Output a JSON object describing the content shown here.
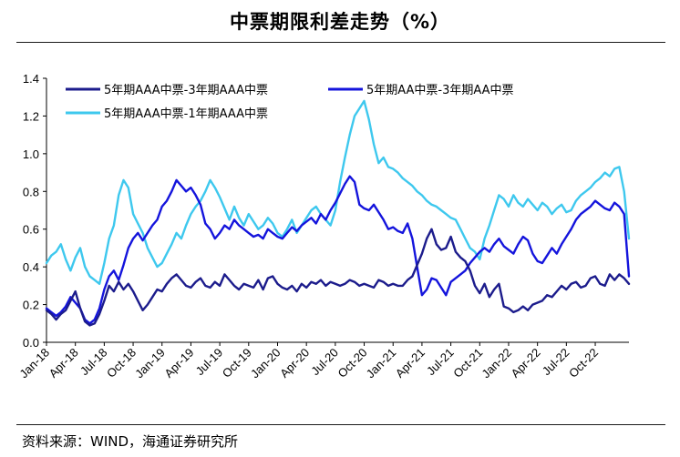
{
  "title": "中票期限利差走势（%）",
  "source": "资料来源：WIND，海通证券研究所",
  "chart_data": {
    "type": "line",
    "title": "中票期限利差走势（%）",
    "xlabel": "",
    "ylabel": "",
    "ylim": [
      0,
      1.4
    ],
    "yticks": [
      "0.0",
      "0.2",
      "0.4",
      "0.6",
      "0.8",
      "1.0",
      "1.2",
      "1.4"
    ],
    "xticks": [
      "Jan-18",
      "Apr-18",
      "Jul-18",
      "Oct-18",
      "Jan-19",
      "Apr-19",
      "Jul-19",
      "Oct-19",
      "Jan-20",
      "Apr-20",
      "Jul-20",
      "Oct-20",
      "Jan-21",
      "Apr-21",
      "Jul-21",
      "Oct-21",
      "Jan-22",
      "Apr-22",
      "Jul-22",
      "Oct-22"
    ],
    "x": [
      0,
      0.5,
      1,
      1.5,
      2,
      2.5,
      3,
      3.5,
      4,
      4.5,
      5,
      5.5,
      6,
      6.5,
      7,
      7.5,
      8,
      8.5,
      9,
      9.5,
      10,
      10.5,
      11,
      11.5,
      12,
      12.5,
      13,
      13.5,
      14,
      14.5,
      15,
      15.5,
      16,
      16.5,
      17,
      17.5,
      18,
      18.5,
      19,
      19.5,
      20,
      20.5,
      21,
      21.5,
      22,
      22.5,
      23,
      23.5,
      24,
      24.5,
      25,
      25.5,
      26,
      26.5,
      27,
      27.5,
      28,
      28.5,
      29,
      29.5,
      30,
      30.5,
      31,
      31.5,
      32,
      32.5,
      33,
      33.5,
      34,
      34.5,
      35,
      35.5,
      36,
      36.5,
      37,
      37.5,
      38,
      38.5,
      39,
      39.5,
      40,
      40.5,
      41,
      41.5,
      42,
      42.5,
      43,
      43.5,
      44,
      44.5,
      45,
      45.5,
      46,
      46.5,
      47,
      47.5,
      48,
      48.5,
      49,
      49.5,
      50,
      50.5,
      51,
      51.5,
      52,
      52.5,
      53,
      53.5,
      54,
      54.5,
      55,
      55.5,
      56,
      56.5,
      57,
      57.5,
      58,
      58.5,
      59,
      59.5,
      60,
      60.5
    ],
    "series": [
      {
        "name": "5年期AAA中票-3年期AAA中票",
        "color": "#1c1c8c",
        "values": [
          0.17,
          0.15,
          0.12,
          0.15,
          0.17,
          0.22,
          0.27,
          0.18,
          0.11,
          0.09,
          0.1,
          0.15,
          0.22,
          0.3,
          0.27,
          0.32,
          0.28,
          0.31,
          0.27,
          0.22,
          0.17,
          0.2,
          0.24,
          0.28,
          0.27,
          0.31,
          0.34,
          0.36,
          0.33,
          0.3,
          0.29,
          0.32,
          0.34,
          0.3,
          0.29,
          0.32,
          0.3,
          0.36,
          0.33,
          0.3,
          0.28,
          0.31,
          0.3,
          0.29,
          0.33,
          0.28,
          0.34,
          0.35,
          0.31,
          0.29,
          0.28,
          0.3,
          0.27,
          0.31,
          0.29,
          0.32,
          0.31,
          0.33,
          0.3,
          0.32,
          0.31,
          0.3,
          0.31,
          0.33,
          0.32,
          0.3,
          0.31,
          0.3,
          0.29,
          0.33,
          0.32,
          0.3,
          0.31,
          0.3,
          0.3,
          0.33,
          0.35,
          0.41,
          0.47,
          0.55,
          0.6,
          0.52,
          0.49,
          0.5,
          0.56,
          0.48,
          0.45,
          0.43,
          0.38,
          0.3,
          0.26,
          0.31,
          0.24,
          0.28,
          0.31,
          0.19,
          0.18,
          0.16,
          0.17,
          0.19,
          0.17,
          0.2,
          0.21,
          0.22,
          0.25,
          0.24,
          0.27,
          0.3,
          0.28,
          0.31,
          0.32,
          0.29,
          0.3,
          0.34,
          0.35,
          0.31,
          0.3,
          0.36,
          0.33,
          0.36,
          0.34,
          0.31
        ]
      },
      {
        "name": "5年期AA中票-3年期AA中票",
        "color": "#1414dc",
        "values": [
          0.18,
          0.16,
          0.14,
          0.16,
          0.19,
          0.24,
          0.21,
          0.18,
          0.12,
          0.1,
          0.12,
          0.18,
          0.28,
          0.35,
          0.38,
          0.33,
          0.41,
          0.5,
          0.55,
          0.58,
          0.54,
          0.58,
          0.62,
          0.65,
          0.72,
          0.75,
          0.8,
          0.86,
          0.83,
          0.8,
          0.82,
          0.78,
          0.73,
          0.63,
          0.6,
          0.55,
          0.58,
          0.62,
          0.6,
          0.65,
          0.62,
          0.6,
          0.58,
          0.56,
          0.57,
          0.55,
          0.6,
          0.58,
          0.56,
          0.55,
          0.58,
          0.61,
          0.59,
          0.62,
          0.64,
          0.66,
          0.63,
          0.68,
          0.65,
          0.7,
          0.74,
          0.79,
          0.84,
          0.88,
          0.85,
          0.73,
          0.71,
          0.7,
          0.73,
          0.69,
          0.65,
          0.6,
          0.61,
          0.59,
          0.58,
          0.63,
          0.55,
          0.4,
          0.25,
          0.28,
          0.34,
          0.33,
          0.29,
          0.25,
          0.32,
          0.34,
          0.36,
          0.38,
          0.42,
          0.45,
          0.48,
          0.5,
          0.48,
          0.52,
          0.55,
          0.51,
          0.49,
          0.47,
          0.52,
          0.56,
          0.54,
          0.47,
          0.43,
          0.42,
          0.46,
          0.5,
          0.47,
          0.52,
          0.56,
          0.6,
          0.65,
          0.68,
          0.7,
          0.72,
          0.75,
          0.73,
          0.71,
          0.7,
          0.74,
          0.72,
          0.68,
          0.35
        ]
      },
      {
        "name": "5年期AAA中票-1年期AAA中票",
        "color": "#3ec8ee",
        "values": [
          0.42,
          0.46,
          0.48,
          0.52,
          0.44,
          0.38,
          0.45,
          0.5,
          0.4,
          0.35,
          0.33,
          0.31,
          0.42,
          0.55,
          0.62,
          0.78,
          0.86,
          0.82,
          0.68,
          0.63,
          0.58,
          0.5,
          0.45,
          0.4,
          0.42,
          0.47,
          0.52,
          0.58,
          0.55,
          0.62,
          0.68,
          0.72,
          0.75,
          0.8,
          0.86,
          0.82,
          0.77,
          0.71,
          0.65,
          0.72,
          0.66,
          0.62,
          0.68,
          0.64,
          0.6,
          0.62,
          0.66,
          0.63,
          0.58,
          0.56,
          0.6,
          0.65,
          0.58,
          0.62,
          0.66,
          0.7,
          0.72,
          0.68,
          0.65,
          0.62,
          0.7,
          0.85,
          0.98,
          1.1,
          1.2,
          1.24,
          1.28,
          1.18,
          1.05,
          0.95,
          0.98,
          0.93,
          0.92,
          0.9,
          0.87,
          0.85,
          0.83,
          0.8,
          0.78,
          0.75,
          0.73,
          0.72,
          0.7,
          0.68,
          0.66,
          0.65,
          0.6,
          0.55,
          0.5,
          0.48,
          0.44,
          0.55,
          0.62,
          0.7,
          0.78,
          0.76,
          0.72,
          0.78,
          0.74,
          0.72,
          0.76,
          0.73,
          0.7,
          0.74,
          0.72,
          0.68,
          0.71,
          0.73,
          0.69,
          0.7,
          0.75,
          0.78,
          0.8,
          0.82,
          0.85,
          0.87,
          0.9,
          0.88,
          0.92,
          0.93,
          0.8,
          0.55
        ]
      }
    ]
  }
}
